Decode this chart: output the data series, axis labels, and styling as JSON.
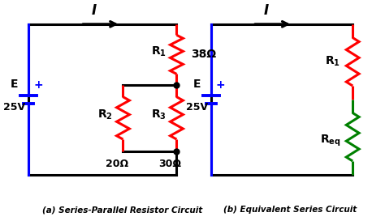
{
  "bg_color": "#ffffff",
  "black": "#000000",
  "red": "#ff0000",
  "blue": "#0000ff",
  "green": "#008000",
  "lw": 2.2,
  "title_a": "(a) Series-Parallel Resistor Circuit",
  "title_b": "(b) Equivalent Series Circuit",
  "label_I": "I",
  "label_E": "E",
  "label_25V": "25V",
  "label_38": "38Ω",
  "label_20": "20Ω",
  "label_30": "30Ω",
  "label_plus": "+"
}
